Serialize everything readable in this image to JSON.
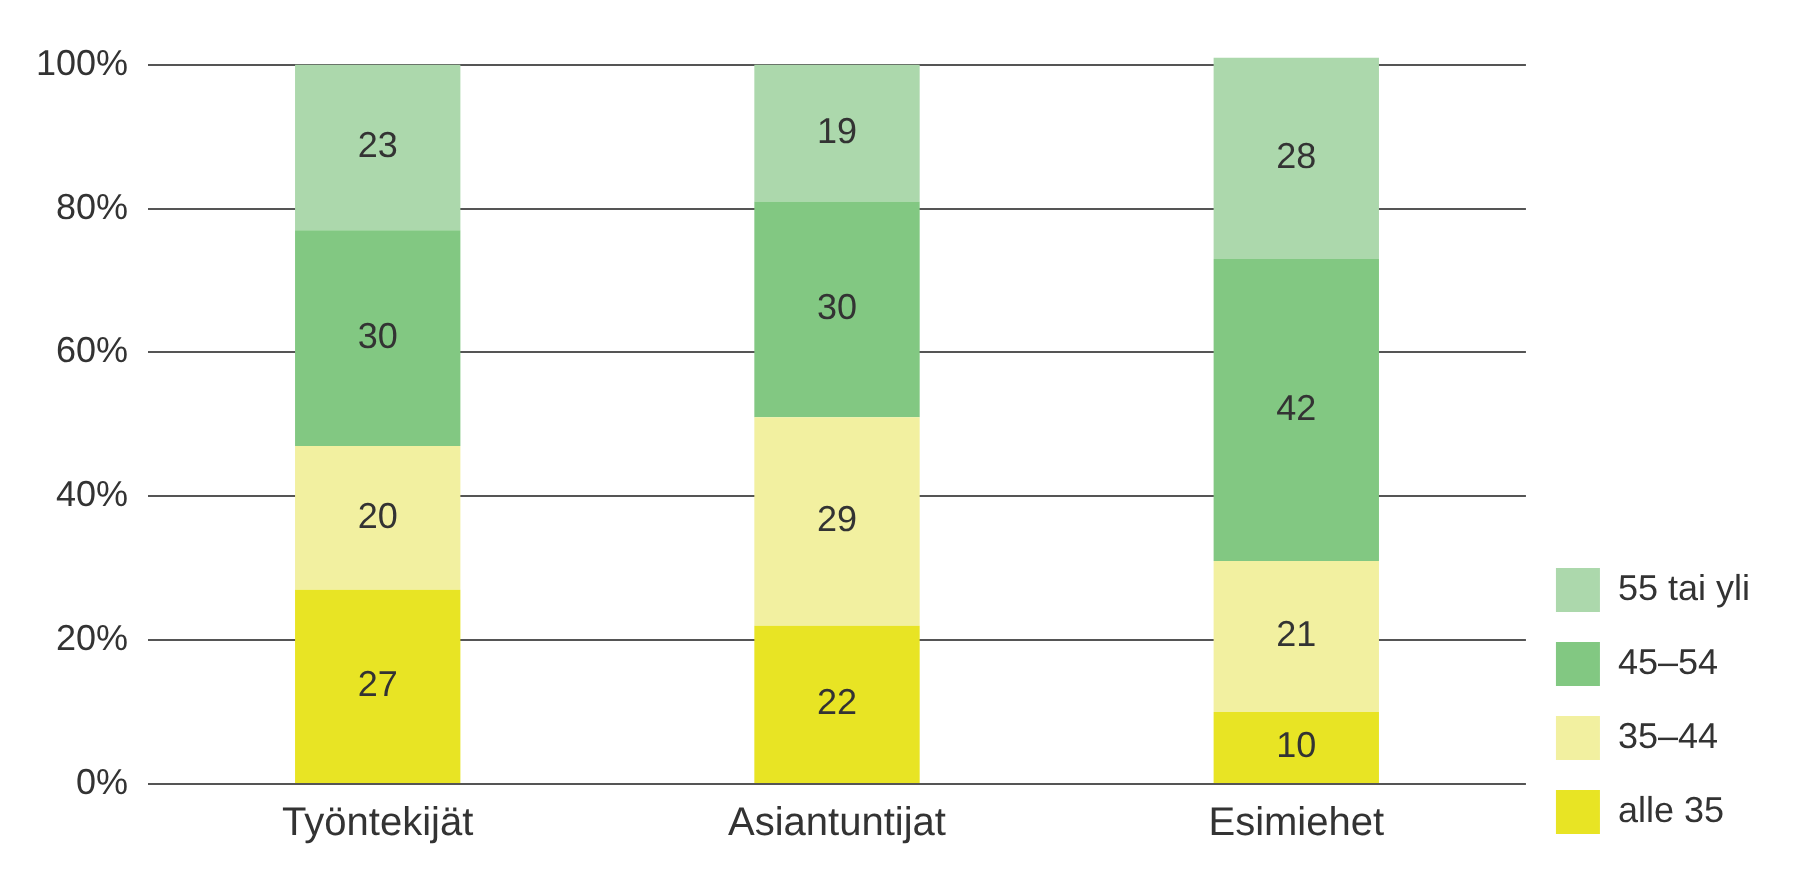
{
  "chart_data": {
    "type": "bar",
    "stacked": true,
    "categories": [
      "Työntekijät",
      "Asiantuntijat",
      "Esimiehet"
    ],
    "series": [
      {
        "name": "alle 35",
        "color": "#e8e424",
        "values": [
          27,
          22,
          10
        ]
      },
      {
        "name": "35–44",
        "color": "#f2f0a0",
        "values": [
          20,
          29,
          21
        ]
      },
      {
        "name": "45–54",
        "color": "#82c882",
        "values": [
          30,
          30,
          42
        ]
      },
      {
        "name": "55 tai yli",
        "color": "#acd8ac",
        "values": [
          23,
          19,
          28
        ]
      }
    ],
    "ylim": [
      0,
      101
    ],
    "yticks": [
      {
        "value": 0,
        "label": "0%"
      },
      {
        "value": 20,
        "label": "20%"
      },
      {
        "value": 40,
        "label": "40%"
      },
      {
        "value": 60,
        "label": "60%"
      },
      {
        "value": 80,
        "label": "80%"
      },
      {
        "value": 100,
        "label": "100%"
      }
    ],
    "grid": "y",
    "legend": "right",
    "data_labels": true
  }
}
